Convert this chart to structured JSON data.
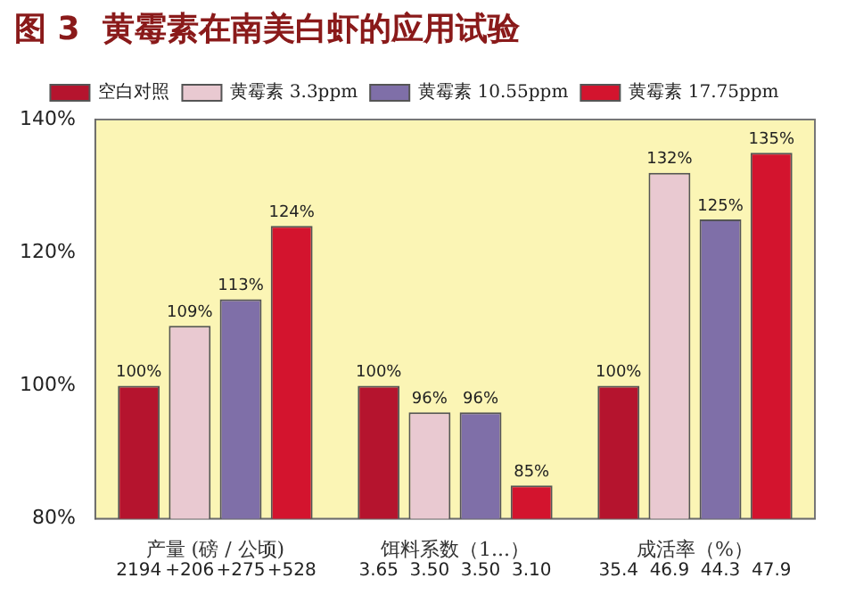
{
  "chart_data": {
    "type": "bar",
    "title": "图 3  黄霉素在南美白虾的应用试验",
    "categories": [
      "产量 (磅 / 公顷)",
      "饵料系数（1...）",
      "成活率（%）"
    ],
    "series": [
      {
        "name": "空白对照",
        "color": "#b5142e",
        "values": [
          100,
          100,
          100
        ],
        "value_labels": [
          "100%",
          "100%",
          "100%"
        ]
      },
      {
        "name": "黄霉素 3.3ppm",
        "color": "#e9c9d1",
        "values": [
          109,
          96,
          132
        ],
        "value_labels": [
          "109%",
          "96%",
          "132%"
        ]
      },
      {
        "name": "黄霉素 10.55ppm",
        "color": "#7f6fa8",
        "values": [
          113,
          96,
          125
        ],
        "value_labels": [
          "113%",
          "96%",
          "125%"
        ]
      },
      {
        "name": "黄霉素 17.75ppm",
        "color": "#d3142e",
        "values": [
          124,
          85,
          135
        ],
        "value_labels": [
          "124%",
          "85%",
          "135%"
        ]
      }
    ],
    "ylim": [
      80,
      140
    ],
    "yticks": [
      {
        "value": 80,
        "label": "80%"
      },
      {
        "value": 100,
        "label": "100%"
      },
      {
        "value": 120,
        "label": "120%"
      },
      {
        "value": 140,
        "label": "140%"
      }
    ],
    "grid": false,
    "legend": "top",
    "annotations": [
      "2194",
      "+206",
      "+275",
      "+528",
      "3.65",
      "3.50",
      "3.50",
      "3.10",
      "35.4",
      "46.9",
      "44.3",
      "47.9"
    ]
  }
}
